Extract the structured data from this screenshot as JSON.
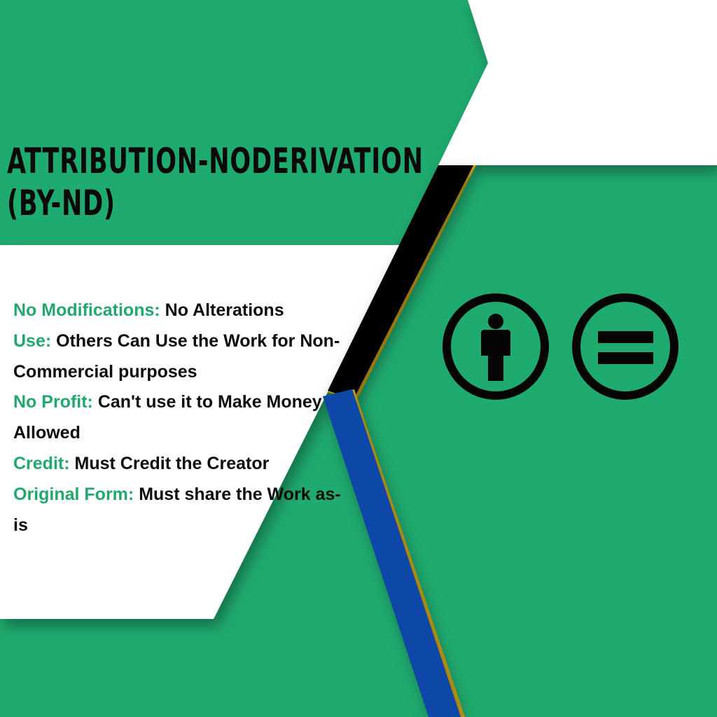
{
  "title": {
    "line1": "ATTRIBUTION-NODERIVATION",
    "line2": "(BY-ND)"
  },
  "terms": [
    {
      "key": "No Modifications:",
      "text": "No Alterations"
    },
    {
      "key": "Use:",
      "text": "Others Can Use the Work for Non-Commercial purposes"
    },
    {
      "key": "No Profit:",
      "text": "Can't use it to Make Money Allowed"
    },
    {
      "key": "Credit:",
      "text": "Must Credit the Creator"
    },
    {
      "key": "Original Form:",
      "text": "Must share the Work as-is"
    }
  ],
  "icons": [
    "attribution-person-icon",
    "no-derivatives-equals-icon"
  ],
  "colors": {
    "background_green": "#1faa6f",
    "accent_green_text": "#22a86d",
    "white_panel": "#ffffff",
    "black_stripe": "#050505",
    "blue_stripe": "#0a47a8",
    "gold_edge": "#d4a514",
    "text_dark": "#0d0d0d"
  }
}
